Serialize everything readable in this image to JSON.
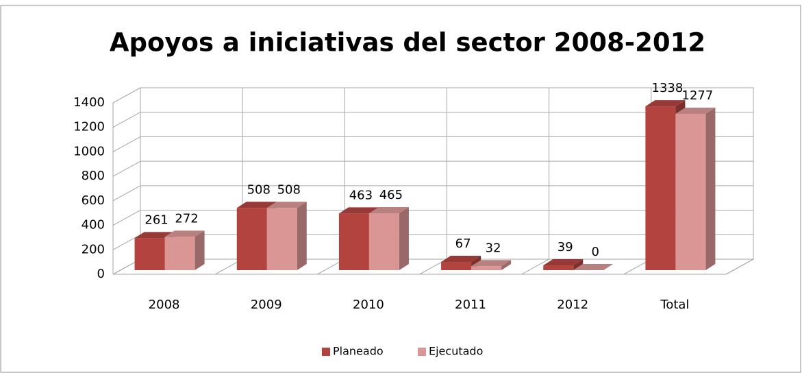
{
  "chart_data": {
    "type": "bar3d",
    "title": "Apoyos a iniciativas del sector 2008-2012",
    "categories": [
      "2008",
      "2009",
      "2010",
      "2011",
      "2012",
      "Total"
    ],
    "series": [
      {
        "name": "Planeado",
        "color": "#b2433f",
        "values": [
          261,
          508,
          463,
          67,
          39,
          1338
        ]
      },
      {
        "name": "Ejecutado",
        "color": "#d99694",
        "values": [
          272,
          508,
          465,
          32,
          0,
          1277
        ]
      }
    ],
    "ylim": [
      0,
      1400
    ],
    "yticks": [
      0,
      200,
      400,
      600,
      800,
      1000,
      1200,
      1400
    ],
    "grid": true,
    "legend": "bottom"
  }
}
